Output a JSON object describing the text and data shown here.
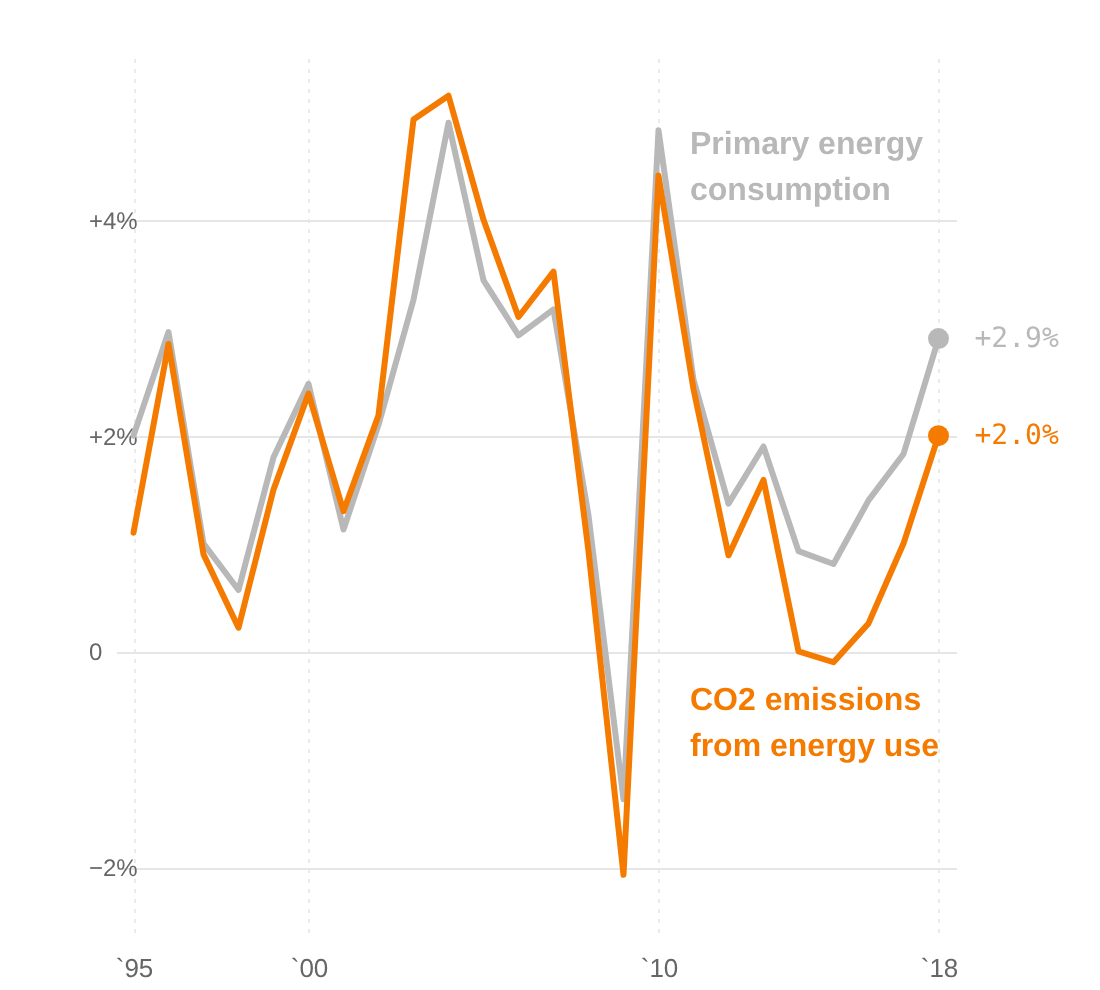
{
  "chart_data": {
    "type": "line",
    "categories": [
      "`95",
      null,
      null,
      null,
      null,
      "`00",
      null,
      null,
      null,
      null,
      null,
      null,
      null,
      null,
      null,
      "`10",
      null,
      null,
      null,
      null,
      null,
      null,
      null,
      "`18"
    ],
    "series": [
      {
        "name": "Primary energy consumption",
        "color": "#b8b8b8",
        "values": [
          2.0,
          2.96,
          1.0,
          0.57,
          1.8,
          2.48,
          1.13,
          2.1,
          3.26,
          4.9,
          3.44,
          2.93,
          3.17,
          1.26,
          -1.37,
          4.83,
          2.52,
          1.37,
          1.9,
          0.93,
          0.81,
          1.4,
          1.83,
          2.9
        ],
        "value_labels": [
          null,
          null,
          null,
          null,
          null,
          null,
          null,
          null,
          null,
          null,
          null,
          null,
          null,
          null,
          null,
          null,
          null,
          null,
          null,
          null,
          null,
          null,
          null,
          "+2.9%"
        ]
      },
      {
        "name": "CO2 emissions from energy use",
        "color": "#f47b00",
        "values": [
          1.1,
          2.85,
          0.9,
          0.22,
          1.5,
          2.39,
          1.3,
          2.19,
          4.93,
          5.15,
          4.0,
          3.1,
          3.52,
          0.93,
          -2.07,
          4.41,
          2.43,
          0.89,
          1.59,
          0.0,
          -0.1,
          0.26,
          1.0,
          2.0
        ],
        "value_labels": [
          null,
          null,
          null,
          null,
          null,
          null,
          null,
          null,
          null,
          null,
          null,
          null,
          null,
          null,
          null,
          null,
          null,
          null,
          null,
          null,
          null,
          null,
          null,
          "+2.0%"
        ]
      }
    ],
    "ylim": [
      -2.6,
      5.5
    ],
    "yticks": [
      {
        "value": -2,
        "label": "−2%"
      },
      {
        "value": 0,
        "label": "0"
      },
      {
        "value": 2,
        "label": "+2%"
      },
      {
        "value": 4,
        "label": "+4%"
      }
    ],
    "grid": true,
    "line_style": "solid"
  }
}
